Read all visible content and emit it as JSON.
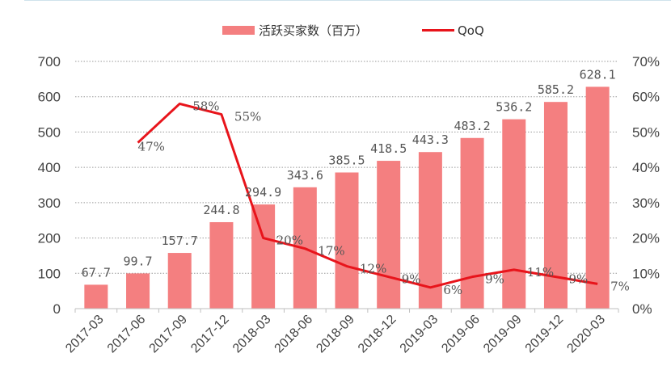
{
  "chart_data": {
    "type": "bar",
    "categories": [
      "2017-03",
      "2017-06",
      "2017-09",
      "2017-12",
      "2018-03",
      "2018-06",
      "2018-09",
      "2018-12",
      "2019-03",
      "2019-06",
      "2019-09",
      "2019-12",
      "2020-03"
    ],
    "series": [
      {
        "name": "活跃买家数（百万）",
        "type": "bar",
        "axis": "left",
        "values": [
          67.7,
          99.7,
          157.7,
          244.8,
          294.9,
          343.6,
          385.5,
          418.5,
          443.3,
          483.2,
          536.2,
          585.2,
          628.1
        ],
        "labels": [
          "67.7",
          "99.7",
          "157.7",
          "244.8",
          "294.9",
          "343.6",
          "385.5",
          "418.5",
          "443.3",
          "483.2",
          "536.2",
          "585.2",
          "628.1"
        ]
      },
      {
        "name": "QoQ",
        "type": "line",
        "axis": "right",
        "values": [
          null,
          47,
          58,
          55,
          20,
          17,
          12,
          9,
          6,
          9,
          11,
          9,
          7
        ],
        "labels": [
          "",
          "47%",
          "58%",
          "55%",
          "20%",
          "17%",
          "12%",
          "9%",
          "6%",
          "9%",
          "11%",
          "9%",
          "7%"
        ]
      }
    ],
    "y_left": {
      "ylim": [
        0,
        700
      ],
      "ticks": [
        "0",
        "100",
        "200",
        "300",
        "400",
        "500",
        "600",
        "700"
      ]
    },
    "y_right": {
      "ylim": [
        0,
        70
      ],
      "ticks": [
        "0%",
        "10%",
        "20%",
        "30%",
        "40%",
        "50%",
        "60%",
        "70%"
      ]
    },
    "grid": "dotted-horizontal",
    "legend": "top-center",
    "colors": {
      "bar": "#f47f80",
      "line": "#e8141b",
      "grid": "#9a9a9a",
      "axis": "#bfbfbf",
      "text": "#444444"
    }
  }
}
